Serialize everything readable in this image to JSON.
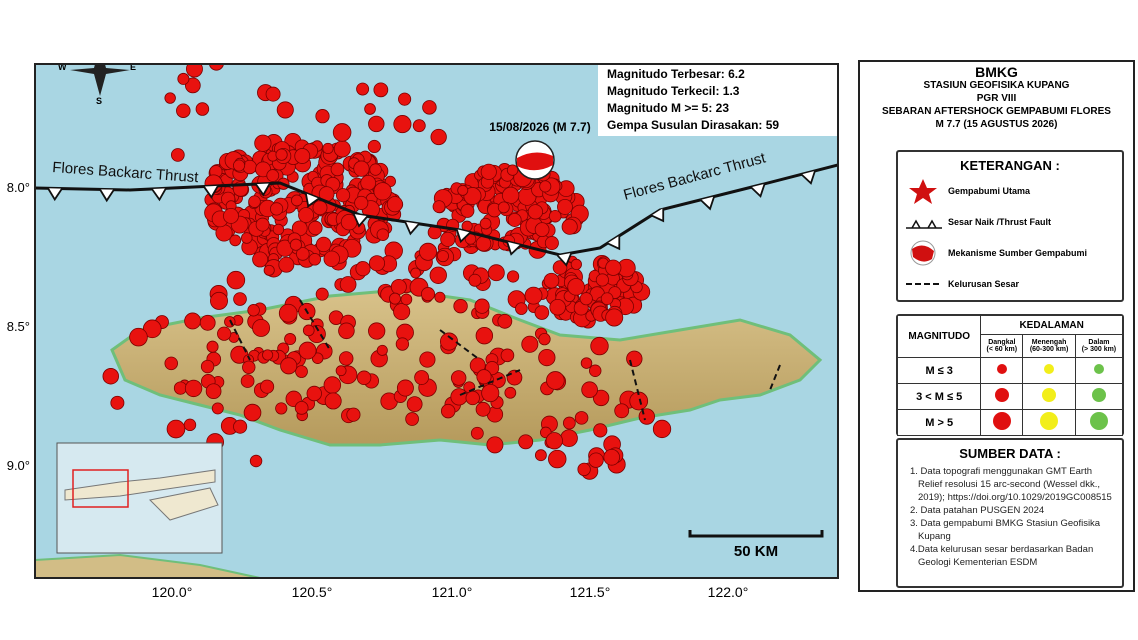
{
  "map": {
    "stats": [
      "Magnitudo Terbesar: 6.2",
      "Magnitudo Terkecil: 1.3",
      "Magnitudo M >= 5: 23",
      "Gempa Susulan Dirasakan: 59"
    ],
    "mainshock_label": "15/08/2026 (M 7.7)",
    "fault_labels": [
      "Flores Backarc Thrust",
      "Flores Backarc Thrust"
    ],
    "lat_labels": [
      "8.0°",
      "8.5°",
      "9.0°"
    ],
    "lon_labels": [
      "120.0°",
      "120.5°",
      "121.0°",
      "121.5°",
      "122.0°"
    ],
    "scale_label": "50 KM",
    "compass": [
      "W",
      "E",
      "S"
    ]
  },
  "legend": {
    "header": [
      "BMKG",
      "STASIUN GEOFISIKA KUPANG",
      "PGR VIII",
      "SEBARAN AFTERSHOCK GEMPABUMI FLORES",
      "M 7.7 (15 AGUSTUS 2026)"
    ],
    "keterangan": {
      "title": "KETERANGAN :",
      "items": [
        "Gempabumi Utama",
        "Sesar Naik /Thrust Fault",
        "Mekanisme Sumber Gempabumi",
        "Kelurusan Sesar"
      ]
    },
    "magnitude_table": {
      "row_header": "MAGNITUDO",
      "depth_header": "KEDALAMAN",
      "columns": [
        {
          "name": "Dangkal",
          "range": "(< 60 km)"
        },
        {
          "name": "Menengah",
          "range": "(60-300 km)"
        },
        {
          "name": "Dalam",
          "range": "(> 300 km)"
        }
      ],
      "rows": [
        "M ≤ 3",
        "3 < M ≤ 5",
        "M > 5"
      ]
    },
    "sources": {
      "title": "SUMBER DATA :",
      "items": [
        "1. Data topografi menggunakan GMT Earth Relief resolusi 15 arc-second (Wessel dkk., 2019); https://doi.org/10.1029/2019GC008515",
        "2. Data patahan PUSGEN 2024",
        "3. Data gempabumi BMKG Stasiun Geofisika Kupang",
        "4.Data kelurusan sesar berdasarkan Badan Geologi Kementerian ESDM"
      ]
    }
  }
}
